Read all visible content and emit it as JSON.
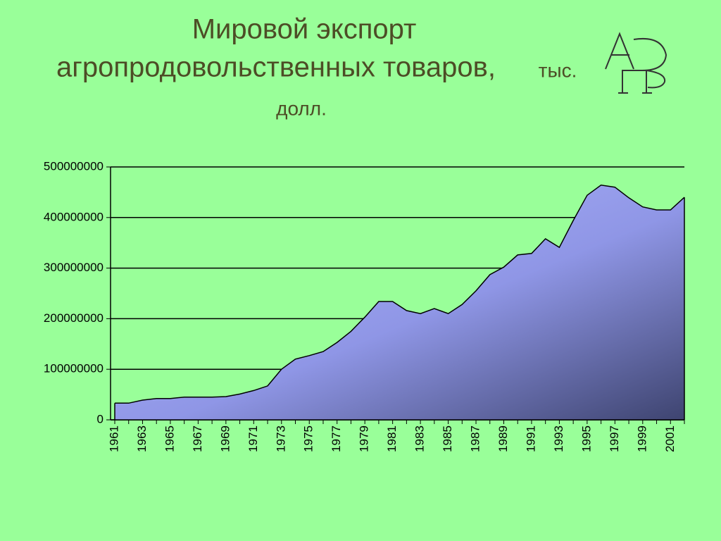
{
  "chart_data": {
    "type": "area",
    "title_lines": [
      "Мировой экспорт",
      "агропродовольственных товаров,"
    ],
    "unit_lines": [
      "тыс.",
      "долл."
    ],
    "categories": [
      "1961",
      null,
      "1963",
      null,
      "1965",
      null,
      "1967",
      null,
      "1969",
      null,
      "1971",
      null,
      "1973",
      null,
      "1975",
      null,
      "1977",
      null,
      "1979",
      null,
      "1981",
      null,
      "1983",
      null,
      "1985",
      null,
      "1987",
      null,
      "1989",
      null,
      "1991",
      null,
      "1993",
      null,
      "1995",
      null,
      "1997",
      null,
      "1999",
      null,
      "2001",
      null
    ],
    "values": [
      33000000,
      33000000,
      39000000,
      42000000,
      42000000,
      45000000,
      45000000,
      45000000,
      46000000,
      51000000,
      58000000,
      67000000,
      100000000,
      120000000,
      127000000,
      135000000,
      153000000,
      175000000,
      203000000,
      234000000,
      234000000,
      216000000,
      210000000,
      220000000,
      210000000,
      228000000,
      255000000,
      287000000,
      302000000,
      326000000,
      329000000,
      358000000,
      341000000,
      394000000,
      444000000,
      464000000,
      460000000,
      439000000,
      421000000,
      415000000,
      415000000,
      440000000
    ],
    "color": "#9da4f2",
    "ylim": [
      0,
      500000000
    ],
    "yticks": [
      0,
      100000000,
      200000000,
      300000000,
      400000000,
      500000000
    ],
    "grid": true
  }
}
